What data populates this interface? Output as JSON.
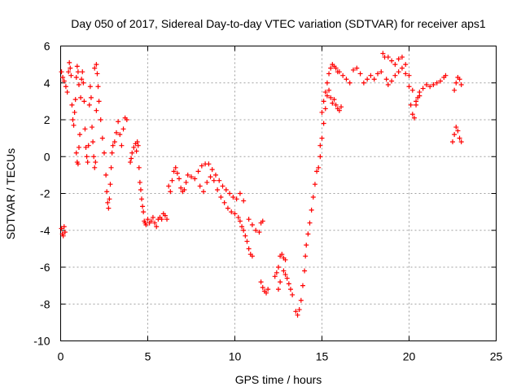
{
  "chart_data": {
    "type": "scatter",
    "title": "Day 050 of 2017, Sidereal Day-to-day VTEC variation (SDTVAR) for receiver aps1",
    "xlabel": "GPS time / hours",
    "ylabel": "SDTVAR / TECUs",
    "xlim": [
      0,
      25
    ],
    "ylim": [
      -10,
      6
    ],
    "xticks": [
      "0",
      "5",
      "10",
      "15",
      "20",
      "25"
    ],
    "yticks": [
      "-10",
      "-8",
      "-6",
      "-4",
      "-2",
      "0",
      "2",
      "4",
      "6"
    ],
    "grid": true,
    "marker": "+",
    "color": "#ff0000",
    "series": [
      {
        "name": "aps1",
        "points": [
          [
            0.05,
            -3.9
          ],
          [
            0.1,
            -4.2
          ],
          [
            0.15,
            -4.3
          ],
          [
            0.2,
            -3.8
          ],
          [
            0.25,
            -4.1
          ],
          [
            0.05,
            4.6
          ],
          [
            0.12,
            4.3
          ],
          [
            0.2,
            4.1
          ],
          [
            0.3,
            3.8
          ],
          [
            0.38,
            3.5
          ],
          [
            0.45,
            4.6
          ],
          [
            0.5,
            5.1
          ],
          [
            0.55,
            4.8
          ],
          [
            0.6,
            4.4
          ],
          [
            0.65,
            2.8
          ],
          [
            0.7,
            2.0
          ],
          [
            0.75,
            1.7
          ],
          [
            0.8,
            2.4
          ],
          [
            0.85,
            3.1
          ],
          [
            0.9,
            4.3
          ],
          [
            0.95,
            4.9
          ],
          [
            1.0,
            4.6
          ],
          [
            1.05,
            3.9
          ],
          [
            0.9,
            0.2
          ],
          [
            0.95,
            -0.3
          ],
          [
            1.0,
            -0.4
          ],
          [
            1.05,
            0.5
          ],
          [
            1.1,
            1.2
          ],
          [
            1.15,
            3.2
          ],
          [
            1.2,
            4.2
          ],
          [
            1.25,
            4.6
          ],
          [
            1.3,
            4.0
          ],
          [
            1.35,
            3.0
          ],
          [
            1.4,
            1.5
          ],
          [
            1.45,
            0.5
          ],
          [
            1.5,
            0.0
          ],
          [
            1.55,
            -0.3
          ],
          [
            1.6,
            0.6
          ],
          [
            1.65,
            2.8
          ],
          [
            1.7,
            3.8
          ],
          [
            1.75,
            3.2
          ],
          [
            1.8,
            1.6
          ],
          [
            1.85,
            0.8
          ],
          [
            1.9,
            0.0
          ],
          [
            1.95,
            -0.6
          ],
          [
            2.0,
            -0.3
          ],
          [
            2.05,
            2.5
          ],
          [
            1.95,
            4.8
          ],
          [
            2.05,
            5.0
          ],
          [
            2.1,
            4.5
          ],
          [
            2.15,
            3.8
          ],
          [
            2.2,
            3.0
          ],
          [
            2.3,
            2.0
          ],
          [
            2.4,
            1.0
          ],
          [
            2.5,
            0.2
          ],
          [
            2.6,
            -1.0
          ],
          [
            2.65,
            -1.9
          ],
          [
            2.7,
            -2.5
          ],
          [
            2.75,
            -2.8
          ],
          [
            2.8,
            -2.3
          ],
          [
            2.85,
            -1.5
          ],
          [
            2.9,
            -0.6
          ],
          [
            2.95,
            0.2
          ],
          [
            3.0,
            0.6
          ],
          [
            3.1,
            0.8
          ],
          [
            3.2,
            1.3
          ],
          [
            3.3,
            1.9
          ],
          [
            3.4,
            1.2
          ],
          [
            3.5,
            0.6
          ],
          [
            3.6,
            1.5
          ],
          [
            3.7,
            2.1
          ],
          [
            3.8,
            2.0
          ],
          [
            4.0,
            -0.3
          ],
          [
            4.05,
            -0.1
          ],
          [
            4.1,
            0.2
          ],
          [
            4.2,
            0.5
          ],
          [
            4.3,
            0.7
          ],
          [
            4.35,
            0.3
          ],
          [
            4.4,
            0.8
          ],
          [
            4.45,
            0.6
          ],
          [
            4.5,
            -0.6
          ],
          [
            4.55,
            -1.4
          ],
          [
            4.6,
            -1.8
          ],
          [
            4.65,
            -2.3
          ],
          [
            4.7,
            -2.7
          ],
          [
            4.75,
            -3.0
          ],
          [
            4.8,
            -3.5
          ],
          [
            4.85,
            -3.6
          ],
          [
            4.9,
            -3.7
          ],
          [
            5.0,
            -3.4
          ],
          [
            5.1,
            -3.6
          ],
          [
            5.2,
            -3.5
          ],
          [
            5.3,
            -3.3
          ],
          [
            5.4,
            -3.6
          ],
          [
            5.5,
            -3.8
          ],
          [
            5.6,
            -3.4
          ],
          [
            5.7,
            -3.3
          ],
          [
            5.8,
            -3.4
          ],
          [
            5.9,
            -3.1
          ],
          [
            6.0,
            -3.2
          ],
          [
            6.1,
            -3.4
          ],
          [
            6.2,
            -1.6
          ],
          [
            6.3,
            -1.9
          ],
          [
            6.4,
            -1.3
          ],
          [
            6.5,
            -0.8
          ],
          [
            6.6,
            -0.6
          ],
          [
            6.7,
            -0.9
          ],
          [
            6.8,
            -1.2
          ],
          [
            6.9,
            -1.7
          ],
          [
            7.0,
            -1.9
          ],
          [
            7.1,
            -1.8
          ],
          [
            7.2,
            -1.4
          ],
          [
            7.3,
            -1.0
          ],
          [
            7.5,
            -1.1
          ],
          [
            7.7,
            -1.2
          ],
          [
            7.9,
            -0.8
          ],
          [
            8.1,
            -0.5
          ],
          [
            8.3,
            -0.4
          ],
          [
            8.5,
            -0.4
          ],
          [
            8.7,
            -0.7
          ],
          [
            8.9,
            -1.0
          ],
          [
            9.1,
            -1.3
          ],
          [
            9.3,
            -1.6
          ],
          [
            9.5,
            -1.8
          ],
          [
            9.7,
            -2.0
          ],
          [
            9.9,
            -2.2
          ],
          [
            10.1,
            -2.3
          ],
          [
            10.3,
            -2.0
          ],
          [
            10.5,
            -2.4
          ],
          [
            8.0,
            -1.6
          ],
          [
            8.2,
            -1.9
          ],
          [
            8.4,
            -1.4
          ],
          [
            8.6,
            -1.1
          ],
          [
            8.8,
            -1.3
          ],
          [
            9.0,
            -1.8
          ],
          [
            9.2,
            -2.2
          ],
          [
            9.4,
            -2.5
          ],
          [
            9.6,
            -2.8
          ],
          [
            9.8,
            -3.0
          ],
          [
            10.0,
            -3.1
          ],
          [
            10.2,
            -3.3
          ],
          [
            10.3,
            -3.5
          ],
          [
            10.4,
            -3.8
          ],
          [
            10.5,
            -4.0
          ],
          [
            10.6,
            -4.3
          ],
          [
            10.7,
            -4.6
          ],
          [
            10.8,
            -5.0
          ],
          [
            10.9,
            -5.3
          ],
          [
            11.0,
            -5.4
          ],
          [
            10.8,
            -3.4
          ],
          [
            11.0,
            -3.7
          ],
          [
            11.2,
            -4.0
          ],
          [
            11.4,
            -4.1
          ],
          [
            11.5,
            -3.6
          ],
          [
            11.6,
            -3.5
          ],
          [
            11.5,
            -6.8
          ],
          [
            11.6,
            -7.1
          ],
          [
            11.7,
            -7.3
          ],
          [
            11.8,
            -7.4
          ],
          [
            11.9,
            -7.2
          ],
          [
            12.3,
            -6.5
          ],
          [
            12.4,
            -6.3
          ],
          [
            12.5,
            -6.0
          ],
          [
            12.6,
            -5.4
          ],
          [
            12.7,
            -5.3
          ],
          [
            12.8,
            -5.5
          ],
          [
            12.9,
            -5.6
          ],
          [
            12.5,
            -7.2
          ],
          [
            12.6,
            -6.8
          ],
          [
            12.8,
            -6.2
          ],
          [
            12.9,
            -6.4
          ],
          [
            13.0,
            -6.6
          ],
          [
            13.1,
            -6.9
          ],
          [
            13.2,
            -7.2
          ],
          [
            13.3,
            -7.5
          ],
          [
            13.5,
            -8.4
          ],
          [
            13.6,
            -8.6
          ],
          [
            13.7,
            -8.3
          ],
          [
            13.8,
            -7.8
          ],
          [
            13.9,
            -7.0
          ],
          [
            14.0,
            -6.2
          ],
          [
            14.05,
            -5.4
          ],
          [
            14.1,
            -4.8
          ],
          [
            14.2,
            -4.2
          ],
          [
            14.3,
            -3.6
          ],
          [
            14.4,
            -2.9
          ],
          [
            14.5,
            -2.2
          ],
          [
            14.6,
            -1.5
          ],
          [
            14.7,
            -0.8
          ],
          [
            14.8,
            -0.6
          ],
          [
            14.9,
            0.0
          ],
          [
            15.0,
            1.0
          ],
          [
            15.1,
            1.8
          ],
          [
            15.2,
            2.6
          ],
          [
            15.3,
            3.3
          ],
          [
            15.4,
            3.6
          ],
          [
            15.5,
            3.2
          ],
          [
            15.6,
            2.9
          ],
          [
            15.7,
            3.1
          ],
          [
            15.8,
            2.8
          ],
          [
            15.9,
            2.6
          ],
          [
            16.0,
            2.5
          ],
          [
            16.1,
            2.7
          ],
          [
            14.9,
            0.6
          ],
          [
            15.0,
            2.4
          ],
          [
            15.1,
            3.0
          ],
          [
            15.2,
            3.5
          ],
          [
            15.3,
            4.0
          ],
          [
            15.4,
            4.5
          ],
          [
            15.5,
            4.8
          ],
          [
            15.6,
            5.0
          ],
          [
            15.7,
            4.9
          ],
          [
            15.8,
            4.8
          ],
          [
            15.9,
            4.6
          ],
          [
            16.0,
            4.6
          ],
          [
            16.2,
            4.4
          ],
          [
            16.4,
            4.2
          ],
          [
            16.6,
            4.0
          ],
          [
            16.8,
            4.7
          ],
          [
            17.0,
            4.8
          ],
          [
            17.2,
            4.5
          ],
          [
            17.4,
            4.0
          ],
          [
            17.6,
            4.2
          ],
          [
            17.8,
            4.4
          ],
          [
            18.0,
            4.2
          ],
          [
            18.2,
            4.5
          ],
          [
            18.4,
            4.6
          ],
          [
            18.5,
            5.6
          ],
          [
            18.6,
            5.4
          ],
          [
            18.7,
            4.2
          ],
          [
            18.8,
            3.9
          ],
          [
            19.0,
            4.1
          ],
          [
            19.2,
            4.4
          ],
          [
            19.4,
            4.6
          ],
          [
            19.6,
            4.8
          ],
          [
            19.8,
            4.5
          ],
          [
            20.0,
            3.8
          ],
          [
            20.1,
            2.8
          ],
          [
            20.2,
            2.3
          ],
          [
            20.3,
            2.1
          ],
          [
            20.4,
            2.8
          ],
          [
            20.5,
            3.2
          ],
          [
            20.6,
            3.5
          ],
          [
            18.8,
            5.4
          ],
          [
            19.0,
            5.2
          ],
          [
            19.2,
            5.0
          ],
          [
            19.4,
            5.3
          ],
          [
            19.6,
            5.4
          ],
          [
            19.8,
            5.0
          ],
          [
            20.0,
            4.4
          ],
          [
            20.2,
            3.6
          ],
          [
            20.4,
            3.0
          ],
          [
            20.6,
            3.3
          ],
          [
            20.8,
            3.7
          ],
          [
            21.0,
            3.9
          ],
          [
            21.2,
            3.8
          ],
          [
            21.4,
            3.9
          ],
          [
            21.6,
            4.0
          ],
          [
            21.8,
            4.1
          ],
          [
            22.0,
            4.3
          ],
          [
            22.1,
            4.4
          ],
          [
            22.5,
            0.8
          ],
          [
            22.6,
            1.2
          ],
          [
            22.7,
            1.6
          ],
          [
            22.8,
            1.4
          ],
          [
            22.9,
            1.0
          ],
          [
            23.0,
            0.8
          ],
          [
            22.6,
            3.6
          ],
          [
            22.7,
            4.0
          ],
          [
            22.8,
            4.3
          ],
          [
            22.9,
            4.2
          ],
          [
            23.0,
            3.9
          ]
        ]
      }
    ]
  }
}
